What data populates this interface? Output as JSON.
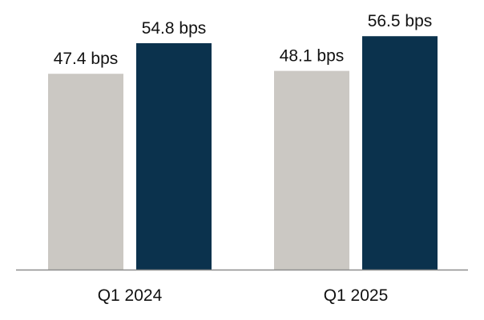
{
  "chart_data": {
    "type": "bar",
    "title": "",
    "xlabel": "",
    "ylabel": "",
    "categories": [
      "Q1 2024",
      "Q1 2025"
    ],
    "series": [
      {
        "values": [
          47.4,
          48.1
        ],
        "labels": [
          "47.4 bps",
          "48.1 bps"
        ],
        "color": "#cbc8c3"
      },
      {
        "values": [
          54.8,
          56.5
        ],
        "labels": [
          "54.8 bps",
          "56.5 bps"
        ],
        "color": "#0b324d"
      }
    ],
    "ylim": [
      0,
      61
    ],
    "grid": false,
    "legend": "none",
    "axis_color": "#8c8c8c"
  }
}
